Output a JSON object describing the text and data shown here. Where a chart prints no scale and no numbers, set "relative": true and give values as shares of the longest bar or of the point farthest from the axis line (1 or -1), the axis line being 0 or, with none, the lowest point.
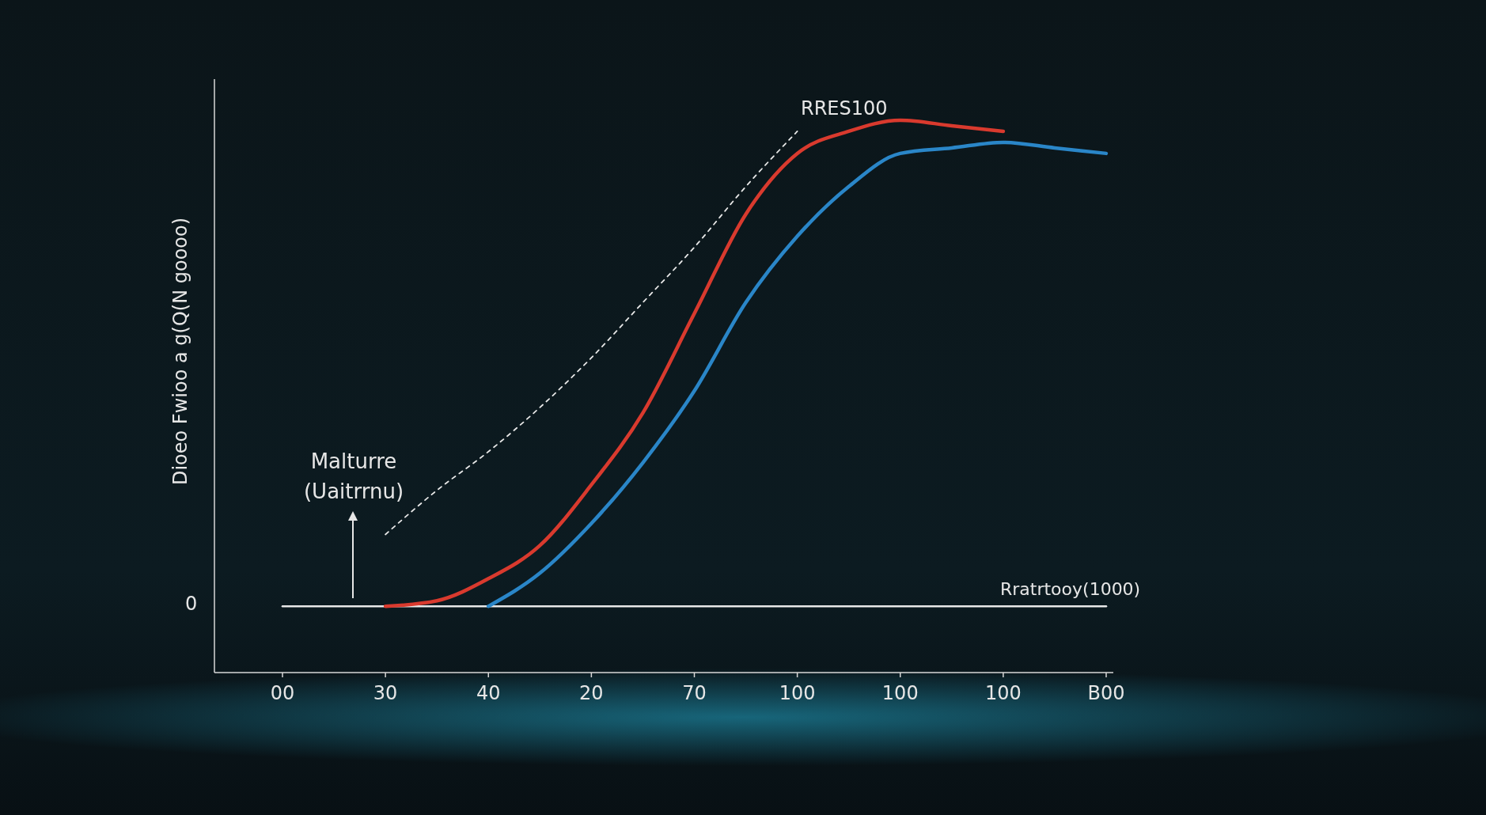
{
  "chart_data": {
    "type": "line",
    "relative": true,
    "ylabel": "Dioeo Fwioo a g(Q(N goooo)",
    "xlabel": "Rratrtooy(1000)",
    "annotations": [
      "Malturre (Uaitrrnu)",
      "RRES100",
      "0"
    ],
    "categories": [
      "00",
      null,
      "30",
      null,
      "40",
      null,
      "20",
      null,
      "70",
      null,
      "100",
      null,
      "100",
      null,
      "100",
      null,
      "B00"
    ],
    "series": [
      {
        "color": "#e8e8e8",
        "values": [
          0.12,
          0.12,
          0.12,
          0.12,
          0.12,
          0.12,
          0.12,
          0.12,
          0.12,
          0.12,
          0.12,
          0.12,
          0.12,
          0.12,
          0.12,
          0.12,
          0.12
        ]
      },
      {
        "color": "#e8e8e8",
        "line_style": "dashed",
        "values": [
          null,
          null,
          0.25,
          0.33,
          0.4,
          0.48,
          0.57,
          0.67,
          0.77,
          0.88,
          0.98,
          null,
          null,
          null,
          null,
          null,
          null
        ]
      },
      {
        "color": "#2a86c8",
        "values": [
          null,
          null,
          null,
          null,
          0.12,
          0.18,
          0.27,
          0.38,
          0.51,
          0.67,
          0.79,
          0.88,
          0.94,
          0.95,
          0.96,
          0.95,
          0.94
        ]
      },
      {
        "color": "#d93a2e",
        "values": [
          null,
          null,
          0.12,
          0.13,
          0.17,
          0.23,
          0.34,
          0.47,
          0.65,
          0.83,
          0.94,
          0.98,
          1,
          0.99,
          0.98,
          null,
          null
        ]
      }
    ]
  }
}
